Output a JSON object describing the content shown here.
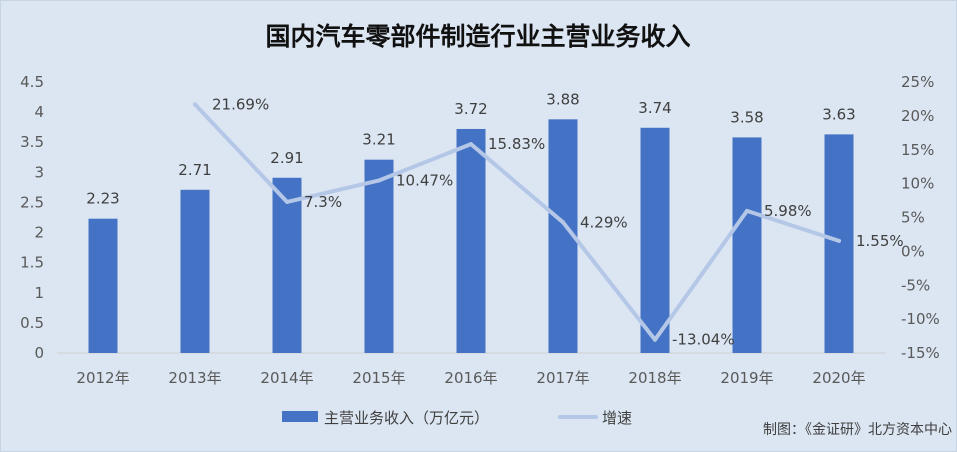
{
  "chart_data": {
    "type": "bar",
    "title": "国内汽车零部件制造行业主营业务收入",
    "categories": [
      "2012年",
      "2013年",
      "2014年",
      "2015年",
      "2016年",
      "2017年",
      "2018年",
      "2019年",
      "2020年"
    ],
    "series": [
      {
        "name": "主营业务收入（万亿元）",
        "type": "bar",
        "axis": "left",
        "color": "#4472c4",
        "values": [
          2.23,
          2.71,
          2.91,
          3.21,
          3.72,
          3.88,
          3.74,
          3.58,
          3.63
        ],
        "labels": [
          "2.23",
          "2.71",
          "2.91",
          "3.21",
          "3.72",
          "3.88",
          "3.74",
          "3.58",
          "3.63"
        ]
      },
      {
        "name": "增速",
        "type": "line",
        "axis": "right",
        "color": "#b4c7e7",
        "values": [
          null,
          21.69,
          7.3,
          10.47,
          15.83,
          4.29,
          -13.04,
          5.98,
          1.55
        ],
        "labels": [
          "",
          "21.69%",
          "7.3%",
          "10.47%",
          "15.83%",
          "4.29%",
          "-13.04%",
          "5.98%",
          "1.55%"
        ]
      }
    ],
    "y_left": {
      "ylim": [
        0,
        4.5
      ],
      "ticks": [
        0,
        0.5,
        1,
        1.5,
        2,
        2.5,
        3,
        3.5,
        4,
        4.5
      ],
      "tick_labels": [
        "0",
        "0.5",
        "1",
        "1.5",
        "2",
        "2.5",
        "3",
        "3.5",
        "4",
        "4.5"
      ]
    },
    "y_right": {
      "ylim": [
        -15,
        25
      ],
      "ticks": [
        -15,
        -10,
        -5,
        0,
        5,
        10,
        15,
        20,
        25
      ],
      "tick_labels": [
        "-15%",
        "-10%",
        "-5%",
        "0%",
        "5%",
        "10%",
        "15%",
        "20%",
        "25%"
      ]
    },
    "grid": false,
    "legend_position": "bottom"
  },
  "credit": "制图：《金证研》北方资本中心"
}
